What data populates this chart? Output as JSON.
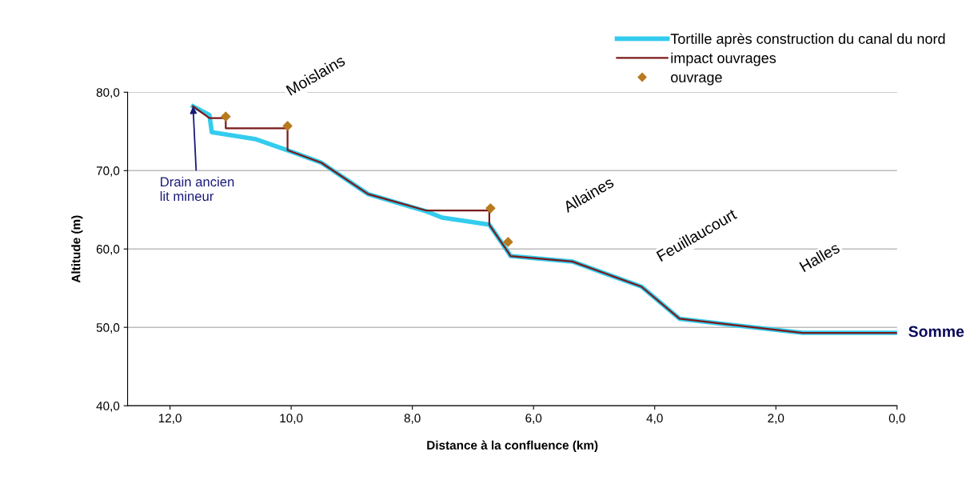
{
  "chart_data": {
    "type": "line",
    "xlabel": "Distance à la confluence (km)",
    "ylabel": "Altitude (m)",
    "xlim": [
      12.7,
      0
    ],
    "ylim": [
      40,
      80
    ],
    "xticks": [
      {
        "value": 12,
        "label": "12,0"
      },
      {
        "value": 10,
        "label": "10,0"
      },
      {
        "value": 8,
        "label": "8,0"
      },
      {
        "value": 6,
        "label": "6,0"
      },
      {
        "value": 4,
        "label": "4,0"
      },
      {
        "value": 2,
        "label": "2,0"
      },
      {
        "value": 0,
        "label": "0,0"
      }
    ],
    "yticks": [
      {
        "value": 40,
        "label": "40,0"
      },
      {
        "value": 50,
        "label": "50,0"
      },
      {
        "value": 60,
        "label": "60,0"
      },
      {
        "value": 70,
        "label": "70,0"
      },
      {
        "value": 80,
        "label": "80,0"
      }
    ],
    "grid": "y",
    "legend": "top right",
    "series": [
      {
        "name": "Tortille après construction du canal du nord",
        "color": "#33ccee",
        "x": [
          11.62,
          11.35,
          11.31,
          10.58,
          10.06,
          9.5,
          8.73,
          7.77,
          7.51,
          6.73,
          6.42,
          6.38,
          5.36,
          4.22,
          3.59,
          2.6,
          1.56,
          0
        ],
        "values": [
          78.2,
          77.1,
          74.9,
          74.0,
          72.6,
          71.0,
          67.0,
          64.8,
          64.0,
          63.1,
          59.6,
          59.1,
          58.4,
          55.2,
          51.1,
          50.2,
          49.3,
          49.3
        ]
      },
      {
        "name": "impact ouvrages",
        "color": "#7a1a1a",
        "x": [
          11.62,
          11.35,
          11.08,
          11.08,
          10.06,
          10.06,
          9.5,
          8.73,
          7.77,
          6.73,
          6.73,
          6.42,
          6.38,
          5.36,
          4.22,
          3.59,
          2.6,
          1.56,
          0
        ],
        "values": [
          78.2,
          76.7,
          76.7,
          75.4,
          75.4,
          72.6,
          71.0,
          67.0,
          64.9,
          64.9,
          63.1,
          59.6,
          59.1,
          58.4,
          55.2,
          51.1,
          50.2,
          49.3,
          49.3
        ]
      },
      {
        "name": "ouvrage",
        "type": "scatter",
        "marker": "diamond",
        "color": "#b87a1e",
        "x": [
          11.08,
          10.06,
          6.71,
          6.42
        ],
        "values": [
          76.9,
          75.7,
          65.2,
          60.9
        ]
      }
    ],
    "annotations": [
      "Moislains",
      "Allaines",
      "Feuillaucourt",
      "Halles",
      {
        "text": "Somme",
        "x": 0,
        "y": 49.3
      },
      {
        "text": "Drain ancien\nlit mineur",
        "x": 11.62,
        "y": 78.2
      }
    ]
  }
}
